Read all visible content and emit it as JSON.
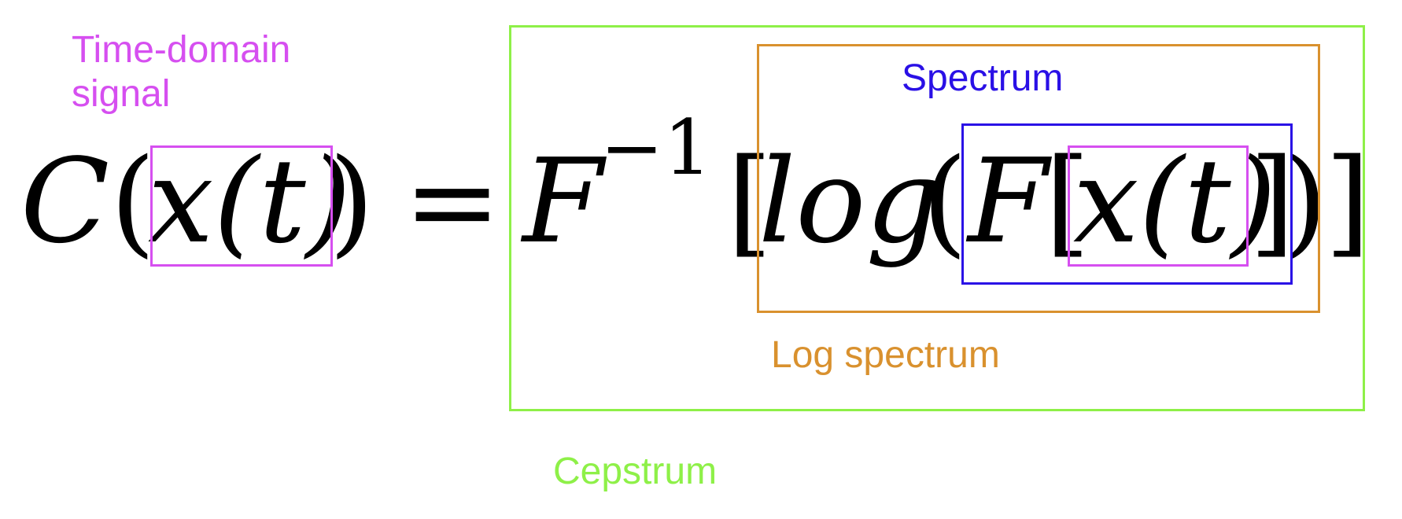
{
  "labels": {
    "time_domain_line1": "Time-domain",
    "time_domain_line2": "signal",
    "spectrum": "Spectrum",
    "log_spectrum": "Log spectrum",
    "cepstrum": "Cepstrum"
  },
  "equation": {
    "C": "C",
    "open_paren": "(",
    "x_of_t": "x(t)",
    "close_paren": ")",
    "equals": "=",
    "F_inverse": "F",
    "inverse_exponent": "−1",
    "open_bracket": "[",
    "log": "log",
    "log_open_paren": "(",
    "F": "F",
    "inner_open_bracket": "[",
    "inner_x_of_t": "x(t)",
    "inner_close_bracket": "]",
    "log_close_paren": ")",
    "close_bracket": "]"
  },
  "colors": {
    "time_domain": "#d64ff0",
    "spectrum": "#2a10e6",
    "log_spectrum": "#d9912e",
    "cepstrum": "#8ef048",
    "equation": "#000000"
  }
}
